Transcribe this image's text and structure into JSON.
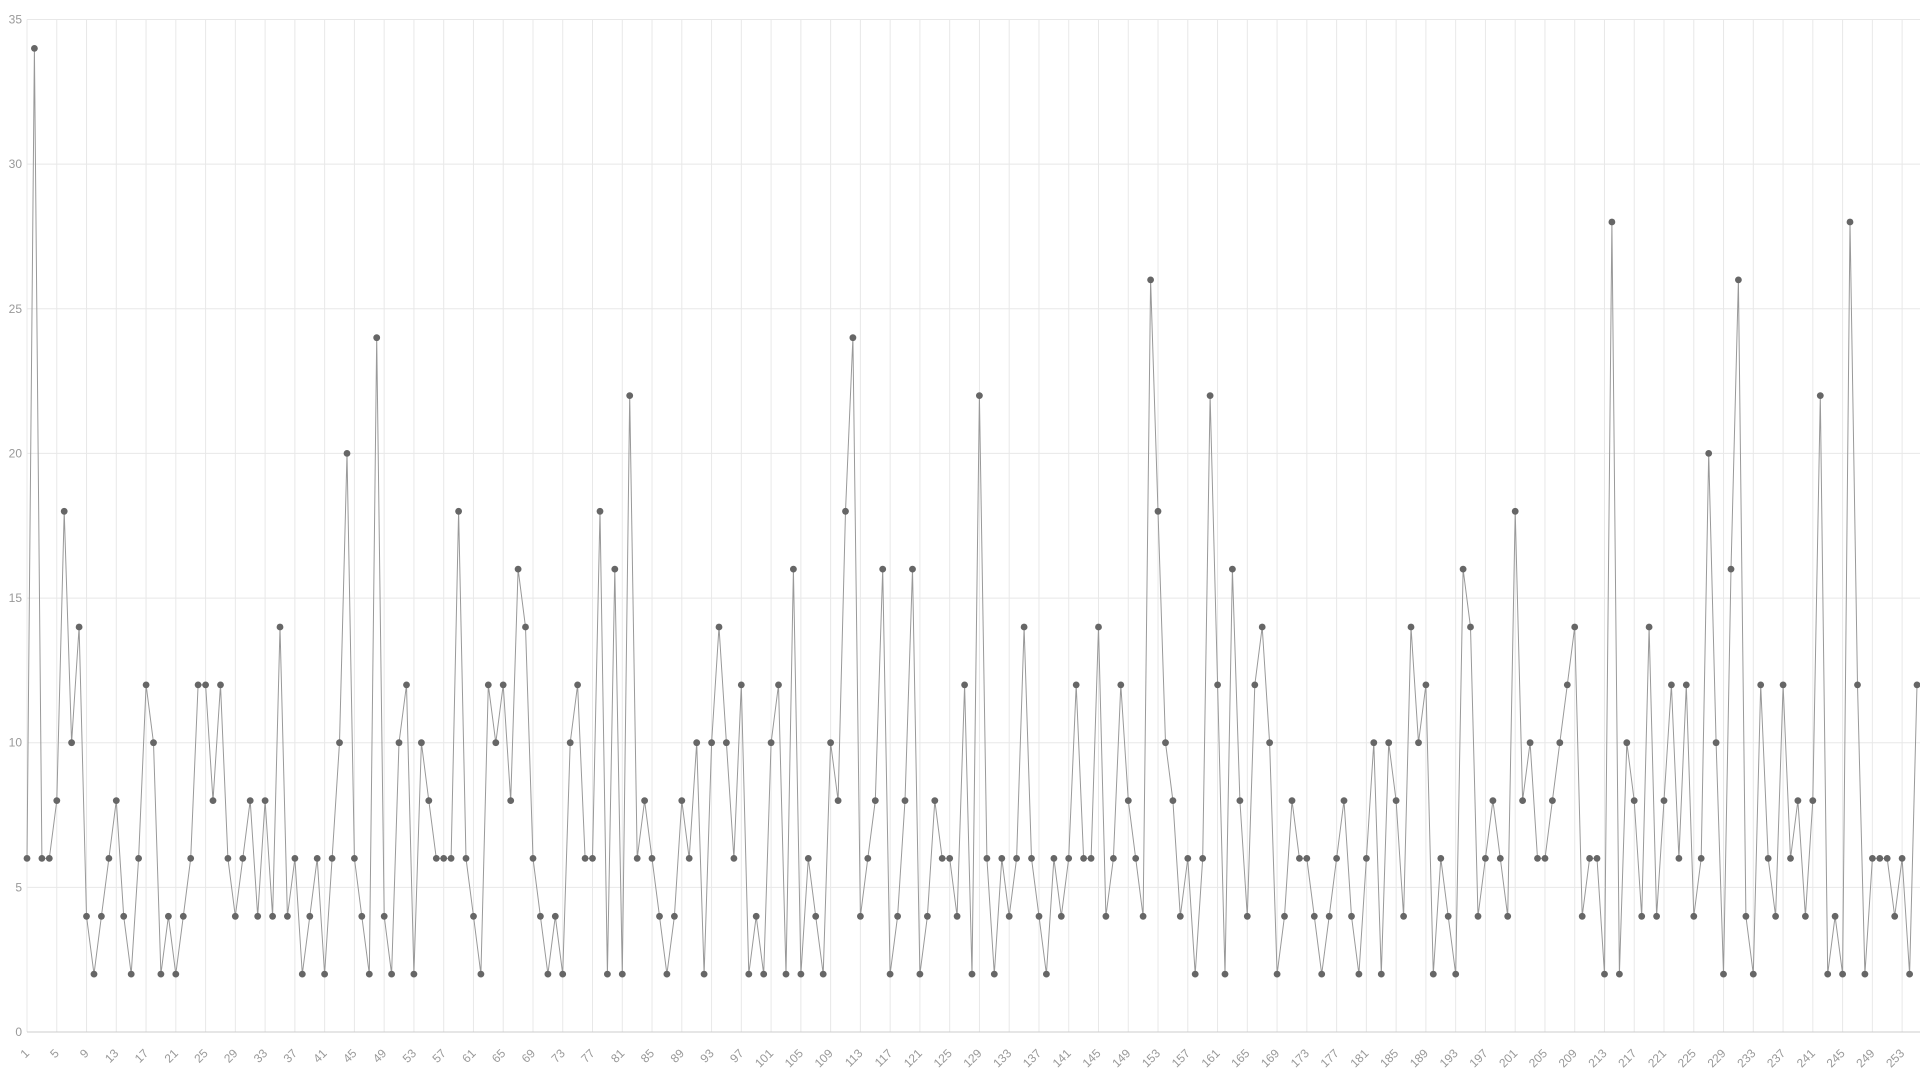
{
  "page": {
    "background": "#ffffff",
    "title": ""
  },
  "chart_data": {
    "type": "line",
    "title": "",
    "subtitle": "",
    "xlabel": "",
    "ylabel": "",
    "legend": "none",
    "grid": true,
    "marker": "circle",
    "n_points": 255,
    "x_start": 1,
    "x_step": 1,
    "x_tick_start": 1,
    "x_tick_interval": 4,
    "x_tick_labels": [
      "1",
      "5",
      "9",
      "13",
      "17",
      "21",
      "25",
      "29",
      "33",
      "37",
      "41",
      "45",
      "49",
      "53",
      "57",
      "61",
      "65",
      "69",
      "73",
      "77",
      "81",
      "85",
      "89",
      "93",
      "97",
      "101",
      "105",
      "109",
      "113",
      "117",
      "121",
      "125",
      "129",
      "133",
      "137",
      "141",
      "145",
      "149",
      "153",
      "157",
      "161",
      "165",
      "169",
      "173",
      "177",
      "181",
      "185",
      "189",
      "193",
      "197",
      "201",
      "205",
      "209",
      "213",
      "217",
      "221",
      "225",
      "229",
      "233",
      "237",
      "241",
      "245",
      "249",
      "253"
    ],
    "y_ticks": [
      "0",
      "5",
      "10",
      "15",
      "20",
      "25",
      "30",
      "35"
    ],
    "ylim": [
      0,
      35
    ],
    "values": [
      6,
      34,
      6,
      6,
      8,
      18,
      10,
      14,
      4,
      2,
      4,
      6,
      8,
      4,
      2,
      6,
      12,
      10,
      2,
      4,
      2,
      4,
      6,
      12,
      12,
      8,
      12,
      6,
      4,
      6,
      8,
      4,
      8,
      4,
      14,
      4,
      6,
      2,
      4,
      6,
      2,
      6,
      10,
      20,
      6,
      4,
      2,
      24,
      4,
      2,
      10,
      12,
      2,
      10,
      8,
      6,
      6,
      6,
      18,
      6,
      4,
      2,
      12,
      10,
      12,
      8,
      16,
      14,
      6,
      4,
      2,
      4,
      2,
      10,
      12,
      6,
      6,
      18,
      2,
      16,
      2,
      22,
      6,
      8,
      6,
      4,
      2,
      4,
      8,
      6,
      10,
      2,
      10,
      14,
      10,
      6,
      12,
      2,
      4,
      2,
      10,
      12,
      2,
      16,
      2,
      6,
      4,
      2,
      10,
      8,
      18,
      24,
      4,
      6,
      8,
      16,
      2,
      4,
      8,
      16,
      2,
      4,
      8,
      6,
      6,
      4,
      12,
      2,
      22,
      6,
      2,
      6,
      4,
      6,
      14,
      6,
      4,
      2,
      6,
      4,
      6,
      12,
      6,
      6,
      14,
      4,
      6,
      12,
      8,
      6,
      4,
      26,
      18,
      10,
      8,
      4,
      6,
      2,
      6,
      22,
      12,
      2,
      16,
      8,
      4,
      12,
      14,
      10,
      2,
      4,
      8,
      6,
      6,
      4,
      2,
      4,
      6,
      8,
      4,
      2,
      6,
      10,
      2,
      10,
      8,
      4,
      14,
      10,
      12,
      2,
      6,
      4,
      2,
      16,
      14,
      4,
      6,
      8,
      6,
      4,
      18,
      8,
      10,
      6,
      6,
      8,
      10,
      12,
      14,
      4,
      6,
      6,
      2,
      28,
      2,
      10,
      8,
      4,
      14,
      4,
      8,
      12,
      6,
      12,
      4,
      6,
      20,
      10,
      2,
      16,
      26,
      4,
      2,
      12,
      6,
      4,
      12,
      6,
      8,
      4,
      8,
      22,
      2,
      4,
      2,
      28,
      12,
      2,
      6,
      6,
      6,
      4,
      6,
      2,
      12
    ],
    "colors": {
      "line": "#999999",
      "point_fill": "#666666",
      "grid": "#e8e8e8",
      "axis": "#cccccc",
      "tick_text": "#999999"
    }
  }
}
